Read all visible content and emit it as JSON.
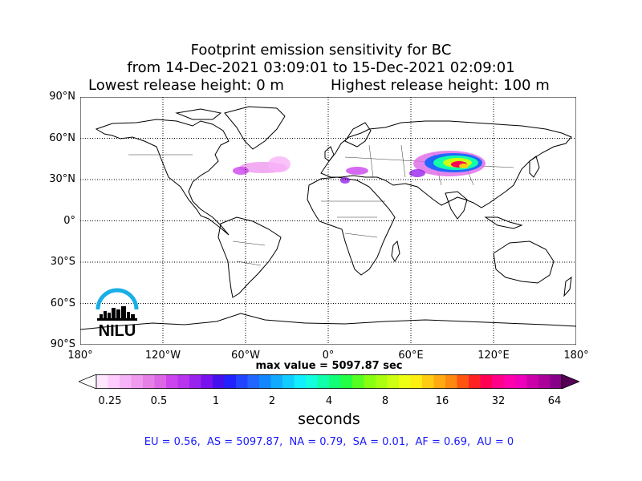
{
  "title": {
    "line1": "Footprint emission sensitivity for BC",
    "line2": "from 14-Dec-2021 03:09:01 to 15-Dec-2021 02:09:01",
    "lowest": "Lowest release height: 0 m",
    "highest": "Highest release height: 100 m"
  },
  "axes": {
    "lat_labels": [
      "90°N",
      "60°N",
      "30°N",
      "0°",
      "30°S",
      "60°S",
      "90°S"
    ],
    "lon_labels": [
      "180°",
      "120°W",
      "60°W",
      "0°",
      "60°E",
      "120°E",
      "180°"
    ]
  },
  "max_value": "max value = 5097.87 sec",
  "colorbar": {
    "tick_labels": [
      "0.25",
      "0.5",
      "1",
      "2",
      "4",
      "8",
      "16",
      "32",
      "64"
    ],
    "unit": "seconds",
    "colors": [
      "#ffe6ff",
      "#ffccff",
      "#f7b3f7",
      "#ef99ef",
      "#e680e6",
      "#dd66e6",
      "#cc44ee",
      "#b833ee",
      "#9922ee",
      "#7711ee",
      "#4411ee",
      "#2222ff",
      "#2244ff",
      "#2266ff",
      "#1188ff",
      "#11aaff",
      "#11ccff",
      "#11eeff",
      "#11ffdd",
      "#11ffaa",
      "#11ff77",
      "#22ff44",
      "#55ff22",
      "#88ff11",
      "#aaff11",
      "#ccff11",
      "#eeff11",
      "#ffee11",
      "#ffcc11",
      "#ffaa11",
      "#ff8811",
      "#ff5511",
      "#ff2222",
      "#ff0055",
      "#ff0088",
      "#ff00aa",
      "#ee00bb",
      "#cc00aa",
      "#aa0099",
      "#880088"
    ]
  },
  "regions": "EU = 0.56,  AS = 5097.87,  NA = 0.79,  SA = 0.01,  AF = 0.69,  AU = 0",
  "logo": {
    "text": "NILU",
    "color": "#1aaee6"
  }
}
